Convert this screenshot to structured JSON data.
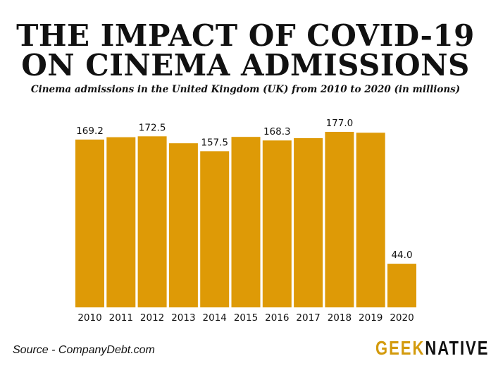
{
  "header": {
    "title_line1": "THE IMPACT OF COVID-19",
    "title_line2": "ON CINEMA ADMISSIONS",
    "subtitle": "Cinema admissions in the United Kingdom (UK) from 2010 to 2020 (in millions)"
  },
  "footer": {
    "source": "Source - CompanyDebt.com",
    "logo_geek": "GEEK",
    "logo_native": "NATIVE",
    "logo_icon": "medusa-head-icon"
  },
  "colors": {
    "bar": "#de9a06",
    "text": "#111111",
    "logo_accent": "#d39a0c"
  },
  "chart_data": {
    "type": "bar",
    "title": "THE IMPACT OF COVID-19 ON CINEMA ADMISSIONS",
    "subtitle": "Cinema admissions in the United Kingdom (UK) from 2010 to 2020 (in millions)",
    "xlabel": "",
    "ylabel": "",
    "categories": [
      "2010",
      "2011",
      "2012",
      "2013",
      "2014",
      "2015",
      "2016",
      "2017",
      "2018",
      "2019",
      "2020"
    ],
    "values": [
      169.2,
      171.6,
      172.5,
      165.5,
      157.5,
      171.9,
      168.3,
      170.6,
      177.0,
      176.1,
      44.0
    ],
    "data_labels": [
      "169.2",
      null,
      "172.5",
      null,
      "157.5",
      null,
      "168.3",
      null,
      "177.0",
      null,
      "44.0"
    ],
    "ylim": [
      0,
      190
    ],
    "grid": false,
    "legend": "none"
  }
}
